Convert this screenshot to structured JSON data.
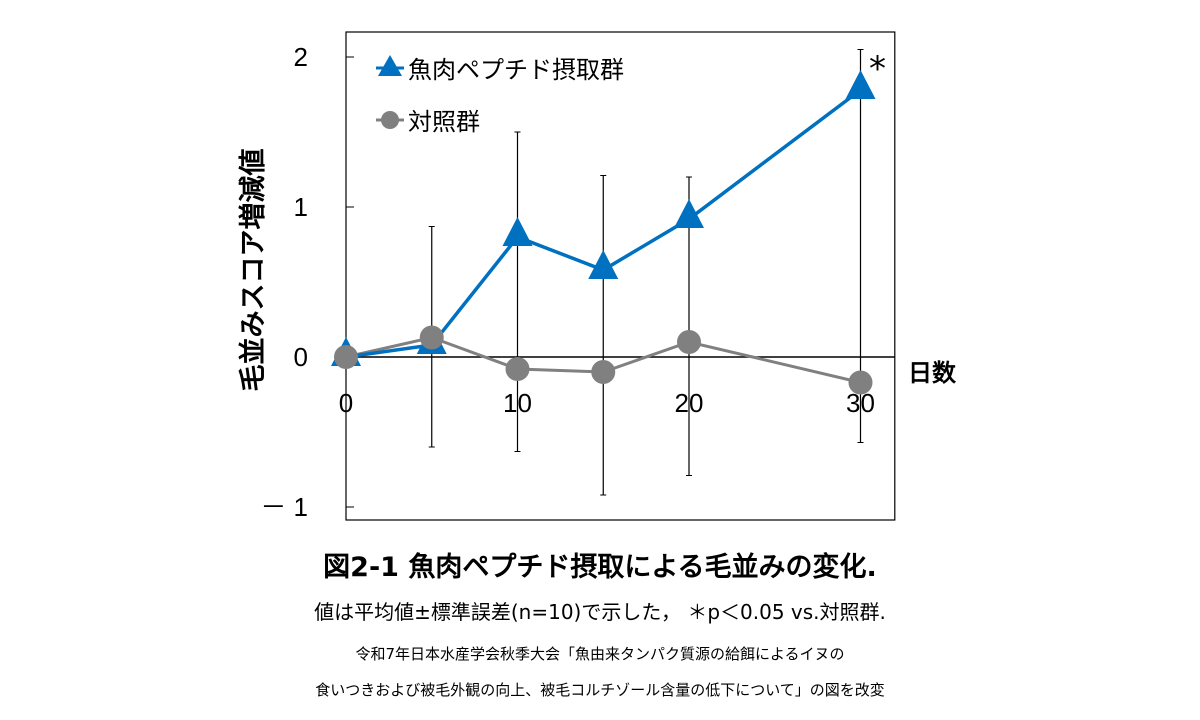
{
  "chart_data": {
    "type": "line",
    "ylabel": "毛並みスコア増減値",
    "xlabel": "日数",
    "xlim": [
      0,
      32
    ],
    "ylim": [
      -1.1,
      2.2
    ],
    "xticks": [
      "0",
      "10",
      "20",
      "30"
    ],
    "yticks": [
      "2",
      "1",
      "0",
      "－ 1"
    ],
    "legend_position": "top-left",
    "grid": false,
    "series": [
      {
        "name": "魚肉ペプチド摂取群",
        "marker": "triangle",
        "color": "#0070C0",
        "x": [
          0,
          5,
          10,
          15,
          20,
          30
        ],
        "y": [
          0,
          0.08,
          0.8,
          0.58,
          0.92,
          1.78
        ],
        "error_upper": [
          null,
          0.87,
          1.5,
          1.21,
          1.2,
          2.05
        ]
      },
      {
        "name": "対照群",
        "marker": "circle",
        "color": "#808080",
        "x": [
          0,
          5,
          10,
          15,
          20,
          30
        ],
        "y": [
          0,
          0.13,
          -0.08,
          -0.1,
          0.1,
          -0.17
        ],
        "error_lower": [
          null,
          -0.6,
          -0.63,
          -0.92,
          -0.79,
          -0.57
        ]
      }
    ],
    "annotations": [
      {
        "x": 30,
        "text": "*"
      }
    ]
  },
  "caption": {
    "title": "図2-1 魚肉ペプチド摂取による毛並みの変化.",
    "note": "値は平均値±標準誤差(n=10)で示した， ＊p＜0.05 vs.対照群.",
    "source_line1": "令和7年日本水産学会秋季大会「魚由来タンパク質源の給餌によるイヌの",
    "source_line2": "食いつきおよび被毛外観の向上、被毛コルチゾール含量の低下について」の図を改変"
  }
}
